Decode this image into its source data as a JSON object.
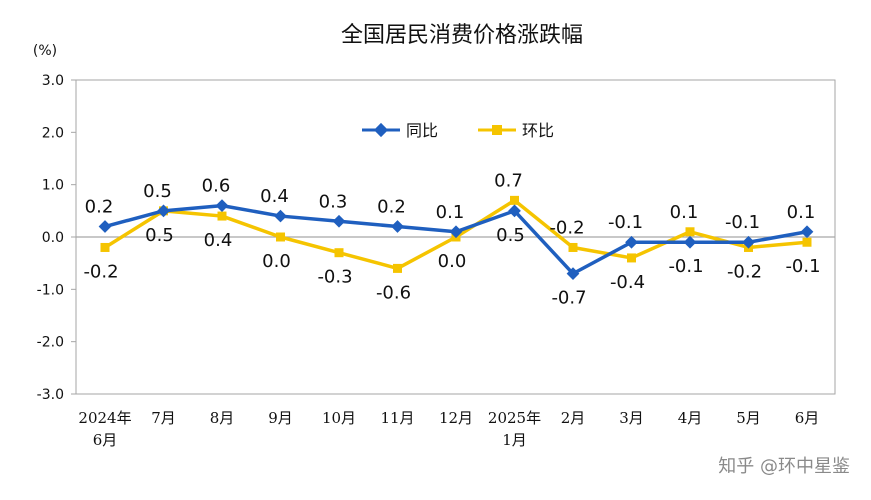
{
  "chart_data": {
    "type": "line",
    "title": "全国居民消费价格涨跌幅",
    "unit": "(%)",
    "ylim": [
      -3.0,
      3.0
    ],
    "yticks": [
      "3.0",
      "2.0",
      "1.0",
      "0.0",
      "-1.0",
      "-2.0",
      "-3.0"
    ],
    "categories": [
      [
        "2024年",
        "6月"
      ],
      [
        "7月"
      ],
      [
        "8月"
      ],
      [
        "9月"
      ],
      [
        "10月"
      ],
      [
        "11月"
      ],
      [
        "12月"
      ],
      [
        "2025年",
        "1月"
      ],
      [
        "2月"
      ],
      [
        "3月"
      ],
      [
        "4月"
      ],
      [
        "5月"
      ],
      [
        "6月"
      ]
    ],
    "series": [
      {
        "name": "同比",
        "color": "#1f5fbf",
        "values": [
          0.2,
          0.5,
          0.6,
          0.4,
          0.3,
          0.2,
          0.1,
          0.5,
          -0.7,
          -0.1,
          -0.1,
          -0.1,
          0.1
        ],
        "labels": [
          "0.2",
          "0.5",
          "0.6",
          "0.4",
          "0.3",
          "0.2",
          "0.1",
          "0.5",
          "-0.7",
          "-0.1",
          "-0.1",
          "-0.1",
          "0.1"
        ]
      },
      {
        "name": "环比",
        "color": "#f5c400",
        "values": [
          -0.2,
          0.5,
          0.4,
          0.0,
          -0.3,
          -0.6,
          0.0,
          0.7,
          -0.2,
          -0.4,
          0.1,
          -0.2,
          -0.1
        ],
        "labels": [
          "-0.2",
          "0.5",
          "0.4",
          "0.0",
          "-0.3",
          "-0.6",
          "0.0",
          "0.7",
          "-0.2",
          "-0.4",
          "0.1",
          "-0.2",
          "-0.1"
        ]
      }
    ],
    "grid": false,
    "legend_position": "top-right"
  },
  "watermark": "知乎 @环中星鉴"
}
